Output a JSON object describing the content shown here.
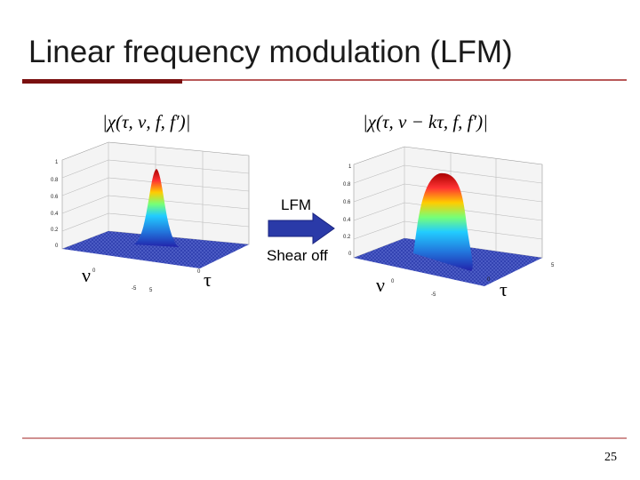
{
  "header": {
    "title": "Linear frequency modulation (LFM)"
  },
  "plots": [
    {
      "formula": "|χ(τ, ν, f, f′)|",
      "zticks": [
        "1",
        "0.8",
        "0.6",
        "0.4",
        "0.2",
        "0"
      ],
      "axis_ticks": [
        "0",
        "-5",
        "5"
      ],
      "x_label": "ν",
      "y_label": "τ"
    },
    {
      "formula": "|χ(τ, ν − kτ, f, f′)|",
      "zticks": [
        "1",
        "0.8",
        "0.6",
        "0.4",
        "0.2",
        "0"
      ],
      "axis_ticks": [
        "0",
        "-5",
        "5"
      ],
      "x_label": "ν",
      "y_label": "τ"
    }
  ],
  "arrow": {
    "top_label": "LFM",
    "bottom_label": "Shear off"
  },
  "footer": {
    "page_number": "25"
  }
}
